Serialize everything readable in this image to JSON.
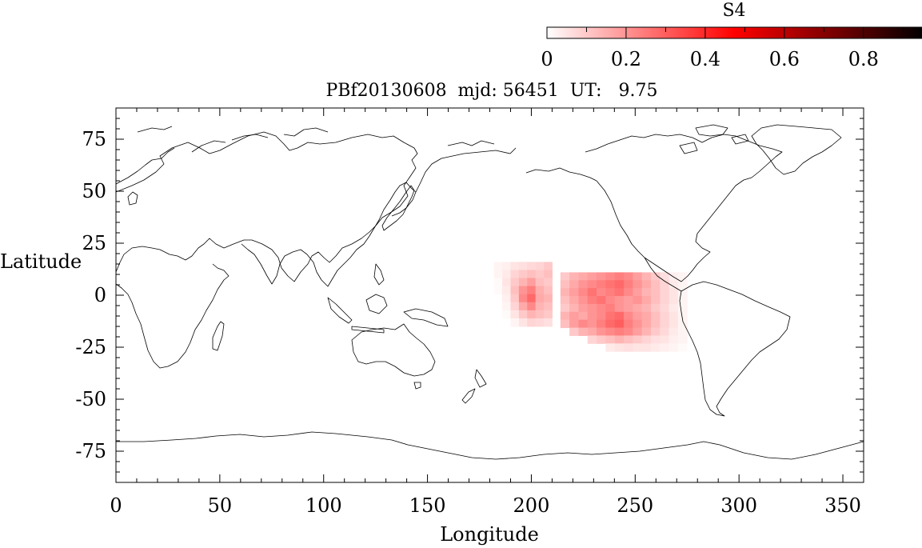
{
  "chart_data": {
    "type": "heatmap",
    "title": "PBf20130608  mjd: 56451  UT:   9.75",
    "xlabel": "Longitude",
    "ylabel": "Latitude",
    "xlim": [
      0,
      360
    ],
    "ylim": [
      -90,
      90
    ],
    "xticks": [
      0,
      50,
      100,
      150,
      200,
      250,
      300,
      350
    ],
    "yticks": [
      75,
      50,
      25,
      0,
      -25,
      -50,
      -75
    ],
    "grid": false,
    "basemap": "world-coastlines",
    "colorbar": {
      "label": "S4",
      "range": [
        0,
        0.95
      ],
      "ticks": [
        "0",
        "0.2",
        "0.4",
        "0.6",
        "0.8"
      ],
      "colormap": [
        "#ffffff",
        "#ff0000",
        "#000000"
      ],
      "placement": "top-right"
    },
    "blocks": [
      {
        "lon": [
          182,
          210
        ],
        "lat": [
          -15,
          16
        ],
        "cells": [
          [
            0.02,
            0.03,
            0.05,
            0.06,
            0.07,
            0.08,
            0.1
          ],
          [
            0.02,
            0.04,
            0.08,
            0.1,
            0.12,
            0.1,
            0.12
          ],
          [
            0.01,
            0.05,
            0.1,
            0.14,
            0.18,
            0.12,
            0.1
          ],
          [
            0.01,
            0.04,
            0.12,
            0.2,
            0.24,
            0.15,
            0.12
          ],
          [
            0.0,
            0.03,
            0.1,
            0.22,
            0.28,
            0.16,
            0.14
          ],
          [
            0.0,
            0.02,
            0.08,
            0.16,
            0.22,
            0.14,
            0.12
          ],
          [
            0.0,
            0.01,
            0.05,
            0.1,
            0.14,
            0.12,
            0.1
          ],
          [
            0.0,
            0.0,
            0.02,
            0.05,
            0.08,
            0.07,
            0.06
          ]
        ]
      },
      {
        "lon": [
          214,
          275
        ],
        "lat": [
          -27,
          11
        ],
        "cells": [
          [
            0.1,
            0.14,
            0.16,
            0.18,
            0.2,
            0.22,
            0.24,
            0.22,
            0.18,
            0.14,
            0.1,
            0.06,
            0.03,
            0.02
          ],
          [
            0.12,
            0.16,
            0.2,
            0.22,
            0.24,
            0.26,
            0.28,
            0.24,
            0.2,
            0.16,
            0.12,
            0.08,
            0.04,
            0.02
          ],
          [
            0.14,
            0.18,
            0.22,
            0.26,
            0.22,
            0.24,
            0.26,
            0.22,
            0.18,
            0.14,
            0.12,
            0.08,
            0.05,
            0.02
          ],
          [
            0.12,
            0.16,
            0.2,
            0.24,
            0.26,
            0.22,
            0.2,
            0.18,
            0.2,
            0.16,
            0.12,
            0.08,
            0.05,
            0.02
          ],
          [
            0.1,
            0.14,
            0.18,
            0.2,
            0.22,
            0.24,
            0.2,
            0.18,
            0.16,
            0.14,
            0.1,
            0.07,
            0.04,
            0.02
          ],
          [
            0.14,
            0.18,
            0.16,
            0.2,
            0.22,
            0.26,
            0.28,
            0.22,
            0.18,
            0.16,
            0.12,
            0.08,
            0.05,
            0.02
          ],
          [
            0.12,
            0.18,
            0.22,
            0.2,
            0.24,
            0.28,
            0.3,
            0.24,
            0.2,
            0.16,
            0.12,
            0.08,
            0.05,
            0.02
          ],
          [
            0.0,
            0.1,
            0.14,
            0.16,
            0.2,
            0.22,
            0.24,
            0.22,
            0.18,
            0.14,
            0.1,
            0.07,
            0.04,
            0.02
          ],
          [
            0.0,
            0.0,
            0.0,
            0.08,
            0.1,
            0.12,
            0.14,
            0.12,
            0.1,
            0.08,
            0.06,
            0.05,
            0.03,
            0.02
          ],
          [
            0.0,
            0.0,
            0.0,
            0.0,
            0.0,
            0.04,
            0.05,
            0.06,
            0.05,
            0.05,
            0.04,
            0.03,
            0.02,
            0.01
          ]
        ]
      }
    ]
  }
}
